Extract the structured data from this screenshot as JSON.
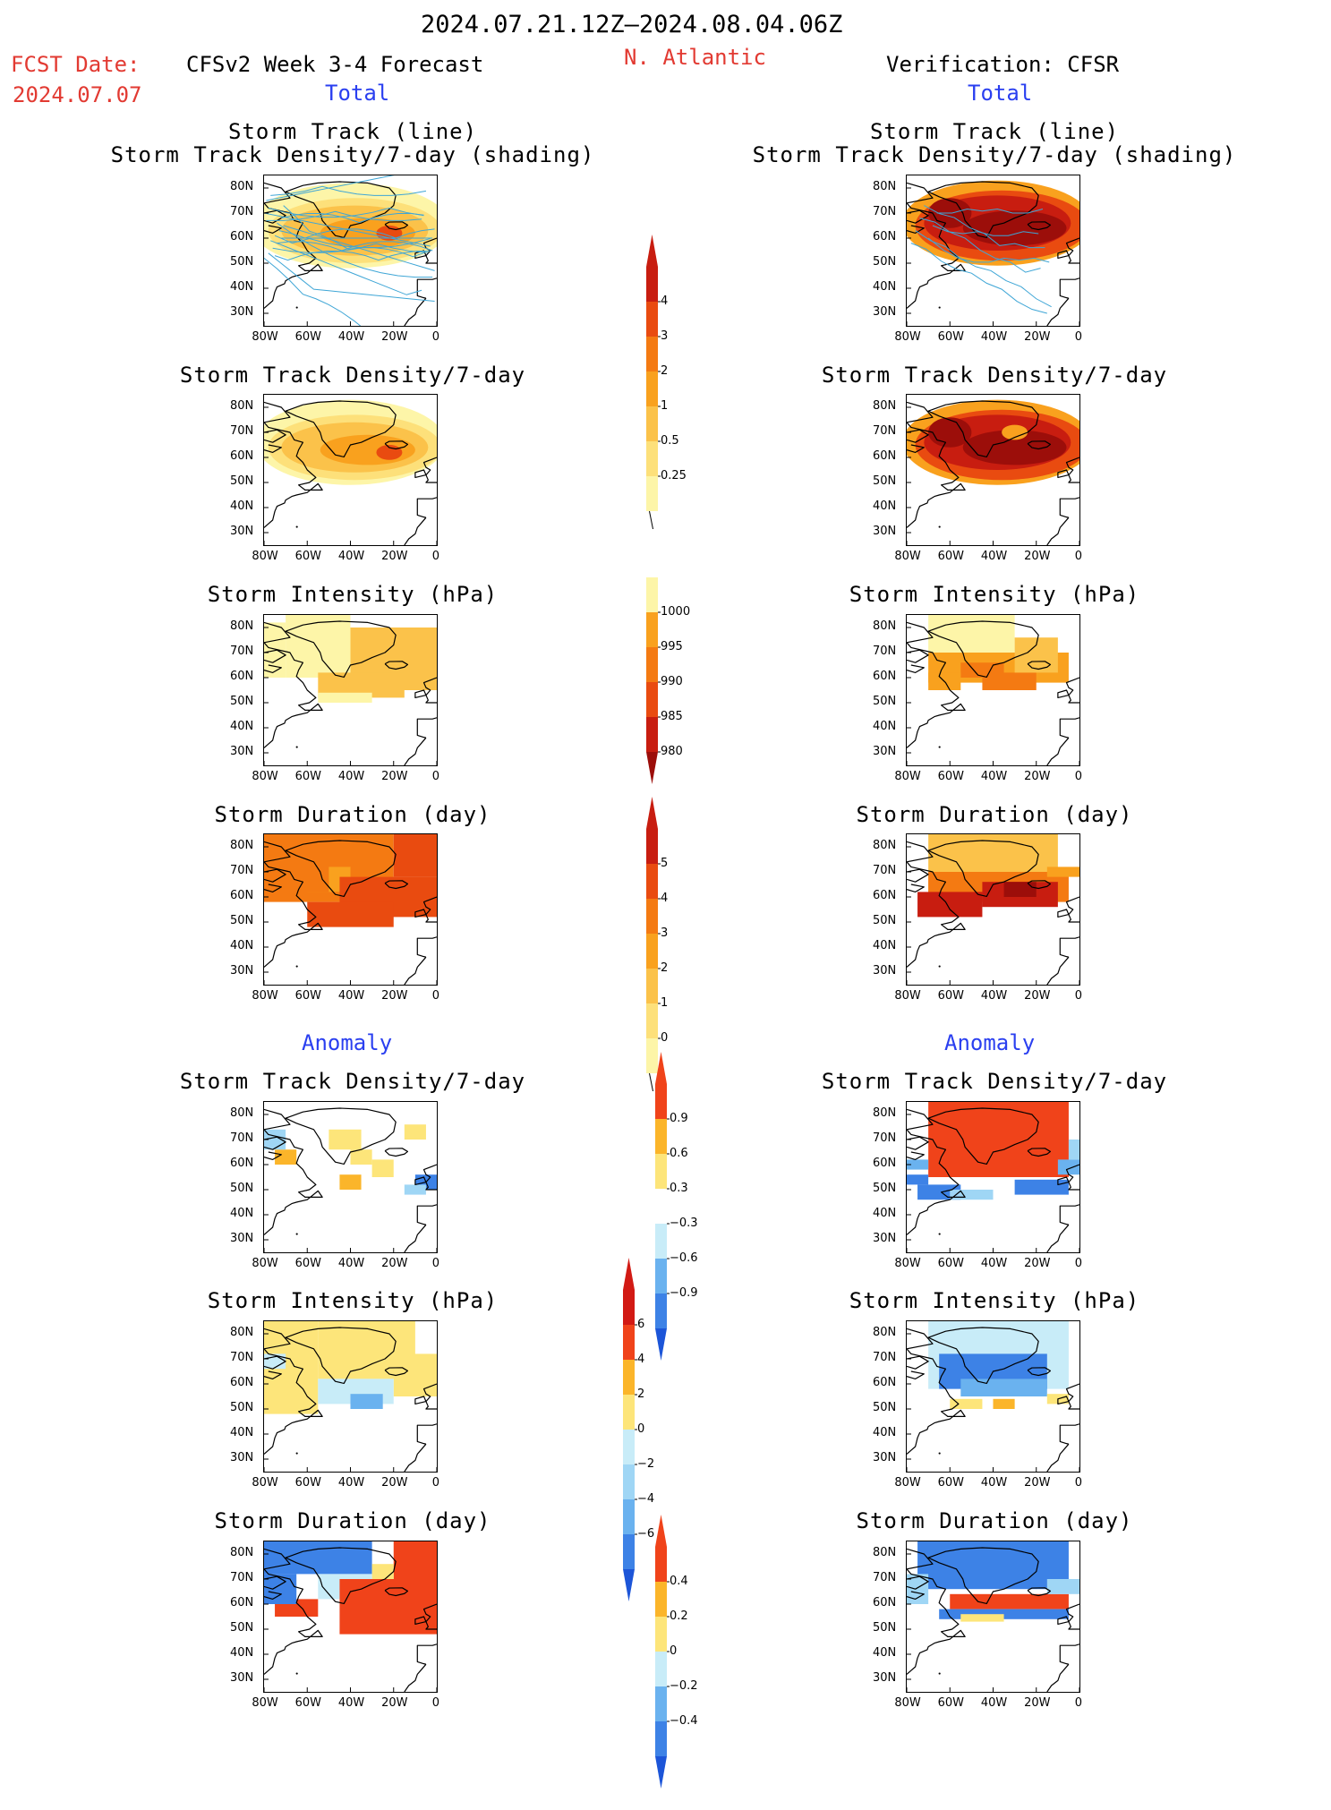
{
  "header": {
    "date_range": "2024.07.21.12Z–2024.08.04.06Z",
    "fcst_label": "FCST Date:",
    "fcst_date": "2024.07.07",
    "region": "N. Atlantic",
    "left_title": "CFSv2 Week 3-4 Forecast",
    "right_title": "Verification: CFSR"
  },
  "sections": {
    "total": "Total",
    "anomaly": "Anomaly"
  },
  "panel_titles": {
    "track_line": "Storm Track (line)",
    "track_shading": "Storm Track Density/7-day (shading)",
    "density": "Storm Track Density/7-day",
    "intensity": "Storm Intensity (hPa)",
    "duration": "Storm Duration (day)"
  },
  "axes": {
    "lat_ticks": [
      "80N",
      "70N",
      "60N",
      "50N",
      "40N",
      "30N"
    ],
    "lon_ticks": [
      "80W",
      "60W",
      "40W",
      "20W",
      "0"
    ]
  },
  "colorbars": {
    "density_total": [
      "4",
      "3",
      "2",
      "1",
      "0.5",
      "0.25"
    ],
    "intensity_total": [
      "1000",
      "995",
      "990",
      "985",
      "980"
    ],
    "duration_total": [
      "5",
      "4",
      "3",
      "2",
      "1",
      "0"
    ],
    "density_anom": [
      "0.9",
      "0.6",
      "0.3",
      "−0.3",
      "−0.6",
      "−0.9"
    ],
    "intensity_anom": [
      "6",
      "4",
      "2",
      "0",
      "−2",
      "−4",
      "−6"
    ],
    "duration_anom": [
      "0.4",
      "0.2",
      "0",
      "−0.2",
      "−0.4"
    ]
  },
  "colors": {
    "red_text": "#e23a32",
    "blue_text": "#2a3ff0",
    "track_line": "#3fa6d6"
  }
}
